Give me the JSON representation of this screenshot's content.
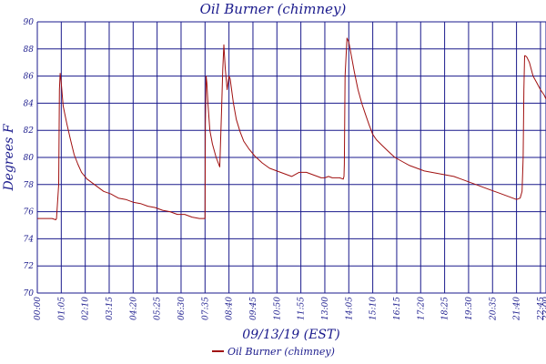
{
  "chart_data": {
    "type": "line",
    "title": "Oil Burner (chimney)",
    "xlabel": "09/13/19 (EST)",
    "ylabel": "Degrees F",
    "ylim": [
      70,
      90
    ],
    "yticks": [
      "70",
      "72",
      "74",
      "76",
      "78",
      "80",
      "82",
      "84",
      "86",
      "88",
      "90"
    ],
    "xlim": [
      0,
      1380
    ],
    "xticks": [
      {
        "value": 0,
        "label": "00:00"
      },
      {
        "value": 65,
        "label": "01:05"
      },
      {
        "value": 130,
        "label": "02:10"
      },
      {
        "value": 195,
        "label": "03:15"
      },
      {
        "value": 260,
        "label": "04:20"
      },
      {
        "value": 325,
        "label": "05:25"
      },
      {
        "value": 390,
        "label": "06:30"
      },
      {
        "value": 455,
        "label": "07:35"
      },
      {
        "value": 520,
        "label": "08:40"
      },
      {
        "value": 585,
        "label": "09:45"
      },
      {
        "value": 650,
        "label": "10:50"
      },
      {
        "value": 715,
        "label": "11:55"
      },
      {
        "value": 780,
        "label": "13:00"
      },
      {
        "value": 845,
        "label": "14:05"
      },
      {
        "value": 910,
        "label": "15:10"
      },
      {
        "value": 975,
        "label": "16:15"
      },
      {
        "value": 1040,
        "label": "17:20"
      },
      {
        "value": 1105,
        "label": "18:25"
      },
      {
        "value": 1170,
        "label": "19:30"
      },
      {
        "value": 1235,
        "label": "20:35"
      },
      {
        "value": 1300,
        "label": "21:40"
      },
      {
        "value": 1365,
        "label": "22:45"
      },
      {
        "value": 1380,
        "label": "23:00"
      }
    ],
    "grid": true,
    "legend_position": "bottom-center",
    "series": [
      {
        "name": "Oil Burner (chimney)",
        "color": "#a01010",
        "x": [
          0,
          20,
          40,
          50,
          52,
          58,
          60,
          62,
          65,
          70,
          80,
          90,
          100,
          110,
          120,
          135,
          150,
          165,
          180,
          200,
          220,
          240,
          260,
          280,
          300,
          320,
          340,
          360,
          380,
          400,
          420,
          440,
          450,
          455,
          456,
          458,
          460,
          463,
          468,
          475,
          485,
          495,
          500,
          503,
          506,
          510,
          515,
          520,
          523,
          527,
          532,
          540,
          550,
          560,
          575,
          590,
          610,
          630,
          650,
          670,
          690,
          710,
          730,
          750,
          760,
          770,
          780,
          790,
          800,
          820,
          830,
          832,
          833,
          835,
          840,
          845,
          850,
          860,
          870,
          880,
          890,
          900,
          910,
          920,
          935,
          950,
          970,
          990,
          1010,
          1030,
          1050,
          1070,
          1090,
          1110,
          1130,
          1150,
          1170,
          1190,
          1210,
          1230,
          1250,
          1270,
          1290,
          1300,
          1310,
          1315,
          1318,
          1320,
          1322,
          1324,
          1328,
          1335,
          1345,
          1355,
          1365,
          1375,
          1380
        ],
        "y": [
          75.5,
          75.5,
          75.5,
          75.4,
          75.5,
          78.0,
          85.0,
          86.2,
          85.5,
          83.8,
          82.5,
          81.3,
          80.2,
          79.5,
          78.9,
          78.4,
          78.1,
          77.8,
          77.5,
          77.3,
          77.0,
          76.9,
          76.7,
          76.6,
          76.4,
          76.3,
          76.1,
          76.0,
          75.8,
          75.8,
          75.6,
          75.5,
          75.5,
          75.5,
          82.5,
          86.0,
          85.5,
          84.0,
          82.0,
          81.0,
          80.0,
          79.3,
          83.5,
          86.5,
          88.3,
          86.5,
          85.0,
          86.0,
          85.8,
          85.0,
          84.0,
          82.8,
          81.9,
          81.2,
          80.6,
          80.1,
          79.6,
          79.2,
          79.0,
          78.8,
          78.6,
          78.9,
          78.9,
          78.7,
          78.6,
          78.5,
          78.5,
          78.6,
          78.5,
          78.5,
          78.4,
          78.6,
          79.5,
          86.0,
          88.8,
          88.5,
          87.8,
          86.3,
          85.0,
          84.0,
          83.2,
          82.4,
          81.7,
          81.3,
          80.9,
          80.5,
          80.0,
          79.7,
          79.4,
          79.2,
          79.0,
          78.9,
          78.8,
          78.7,
          78.6,
          78.4,
          78.2,
          78.0,
          77.8,
          77.6,
          77.4,
          77.2,
          77.0,
          76.9,
          77.0,
          77.5,
          80.0,
          85.0,
          87.5,
          87.5,
          87.4,
          87.0,
          86.0,
          85.5,
          85.0,
          84.6,
          84.3
        ]
      }
    ]
  }
}
